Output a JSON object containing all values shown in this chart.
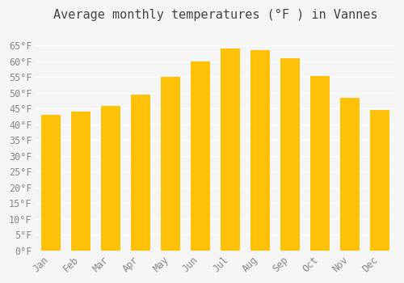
{
  "title": "Average monthly temperatures (°F ) in Vannes",
  "months": [
    "Jan",
    "Feb",
    "Mar",
    "Apr",
    "May",
    "Jun",
    "Jul",
    "Aug",
    "Sep",
    "Oct",
    "Nov",
    "Dec"
  ],
  "values": [
    43,
    44,
    46,
    49.5,
    55,
    60,
    64,
    63.5,
    61,
    55.5,
    48.5,
    44.5
  ],
  "bar_color_top": "#FFC107",
  "bar_color_bottom": "#FFB300",
  "bar_edge_color": "#E65100",
  "ylim": [
    0,
    70
  ],
  "yticks": [
    0,
    5,
    10,
    15,
    20,
    25,
    30,
    35,
    40,
    45,
    50,
    55,
    60,
    65
  ],
  "background_color": "#f5f5f5",
  "grid_color": "#ffffff",
  "title_fontsize": 11,
  "tick_fontsize": 8.5
}
